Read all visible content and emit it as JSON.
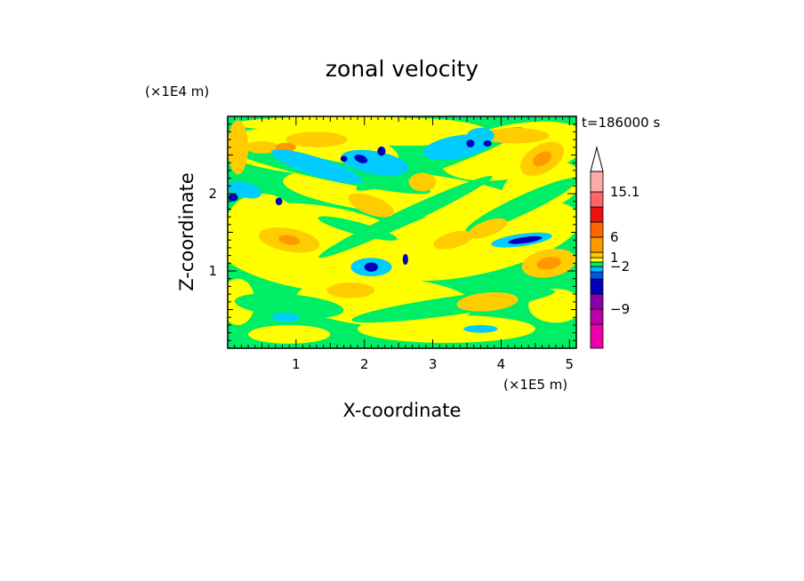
{
  "chart_data": {
    "type": "heatmap",
    "title": "zonal velocity",
    "xlabel": "X-coordinate",
    "ylabel": "Z-coordinate",
    "x_unit": "(×1E5 m)",
    "y_unit": "(×1E4 m)",
    "time_label": "t=186000 s",
    "xlim": [
      0,
      5.1
    ],
    "ylim": [
      0,
      3.0
    ],
    "x_ticks": [
      1,
      2,
      3,
      4,
      5
    ],
    "y_ticks": [
      1,
      2
    ],
    "colorbar": {
      "colors": [
        "#ee00aa",
        "#bb00aa",
        "#8800aa",
        "#0000bb",
        "#0055ee",
        "#00bbff",
        "#00ee66",
        "#ffff00",
        "#ffcc00",
        "#ff9900",
        "#ff6600",
        "#ee1111",
        "#ff6666",
        "#ffaaaa"
      ],
      "labels": [
        "15.1",
        "6",
        "1",
        "-2",
        "-9"
      ],
      "extend": "max"
    },
    "field_levels": [
      {
        "level": -3,
        "color": "#00ccff"
      },
      {
        "level": -1,
        "color": "#00ee66"
      },
      {
        "level": 0,
        "color": "#ffff00"
      },
      {
        "level": 1,
        "color": "#ffcc00"
      },
      {
        "level": 2,
        "color": "#ff9900"
      },
      {
        "level": -6,
        "color": "#0000bb"
      }
    ]
  }
}
